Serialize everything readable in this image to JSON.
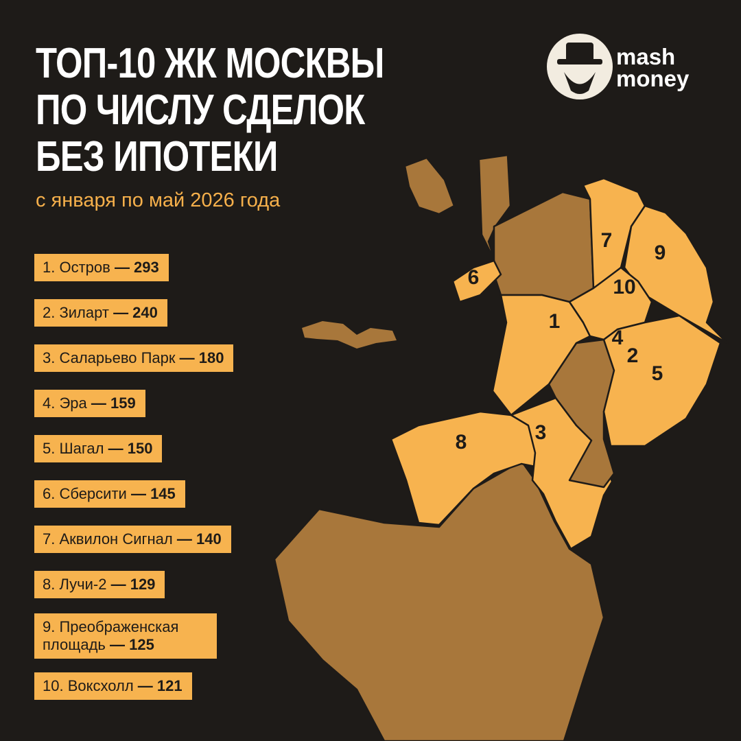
{
  "header": {
    "title_lines": [
      "ТОП-10 ЖК МОСКВЫ",
      "ПО ЧИСЛУ СДЕЛОК",
      "БЕЗ ИПОТЕКИ"
    ],
    "subtitle": "с января по май 2026 года",
    "brand": [
      "mash",
      "money"
    ]
  },
  "items": [
    {
      "name": "1. Остров",
      "amount": "— 293"
    },
    {
      "name": "2. Зиларт",
      "amount": "— 240"
    },
    {
      "name": "3. Саларьево Парк",
      "amount": "— 180"
    },
    {
      "name": "4. Эра",
      "amount": "— 159"
    },
    {
      "name": "5. Шагал",
      "amount": "— 150"
    },
    {
      "name": "6. Сберсити",
      "amount": "— 145"
    },
    {
      "name": "7. Аквилон Сигнал",
      "amount": "— 140"
    },
    {
      "name": "8. Лучи-2",
      "amount": "— 129"
    },
    {
      "name": "9. Преображенская площадь",
      "amount": "— 125"
    },
    {
      "name": "10. Воксхолл",
      "amount": "— 121"
    }
  ],
  "map": {
    "labels": [
      "1",
      "2",
      "3",
      "4",
      "5",
      "6",
      "7",
      "8",
      "9",
      "10"
    ]
  }
}
